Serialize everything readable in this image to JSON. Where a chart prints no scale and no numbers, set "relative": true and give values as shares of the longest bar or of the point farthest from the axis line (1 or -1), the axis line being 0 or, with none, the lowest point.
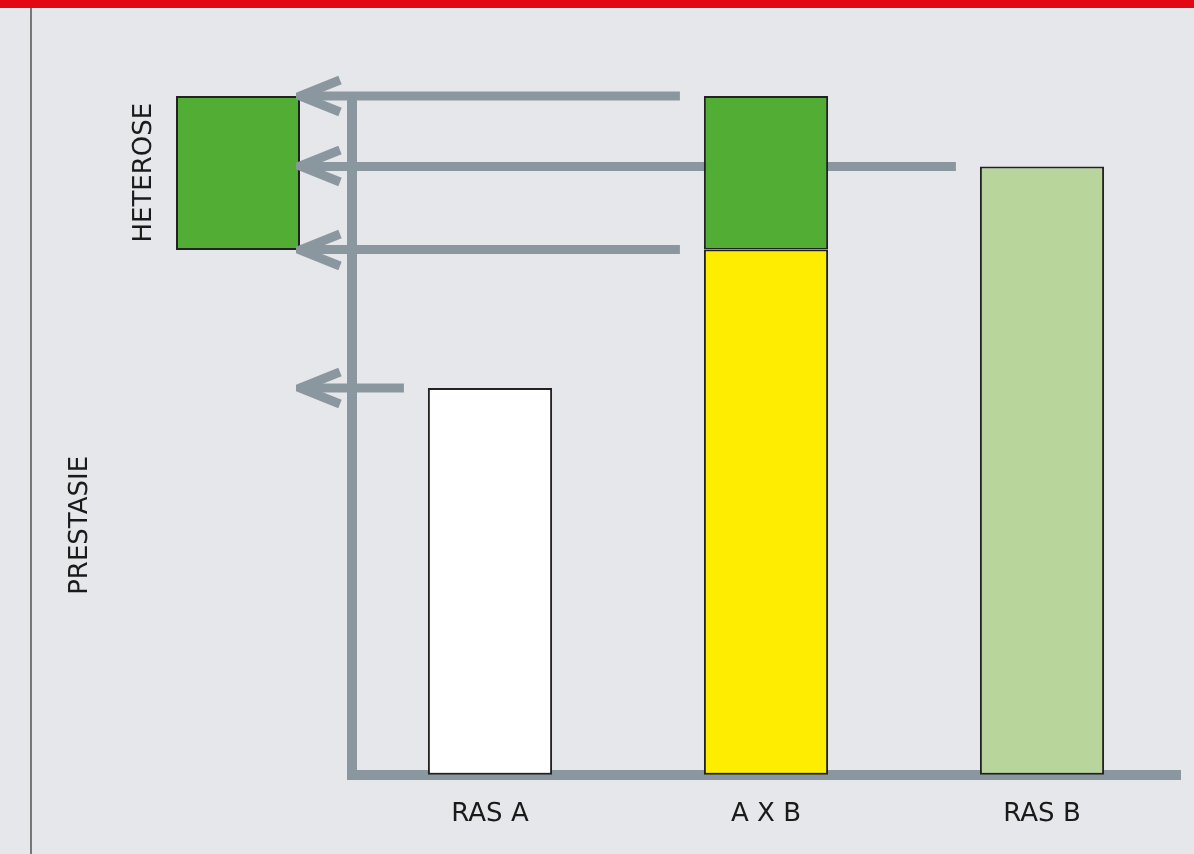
{
  "chart_data": {
    "type": "bar",
    "stacked": true,
    "relative": true,
    "categories": [
      "RAS A",
      "A X B",
      "RAS B"
    ],
    "series": [
      {
        "colors": [
          "#ffffff",
          "#ffed00",
          "#b8d69b"
        ],
        "values": [
          0.57,
          0.774,
          0.896
        ]
      },
      {
        "color": "#52ad34",
        "values": [
          null,
          0.226,
          null
        ]
      }
    ],
    "ref_lines": [
      {
        "axis": "y",
        "value": 1,
        "color": "#8a979f"
      },
      {
        "axis": "y",
        "value": 0.896,
        "color": "#8a979f"
      },
      {
        "axis": "y",
        "value": 0.774,
        "color": "#8a979f"
      },
      {
        "axis": "y",
        "value": 0.57,
        "color": "#8a979f"
      }
    ],
    "annotations": [
      "HETEROSE",
      "PRESTASIE"
    ],
    "legend": false,
    "grid": false
  }
}
